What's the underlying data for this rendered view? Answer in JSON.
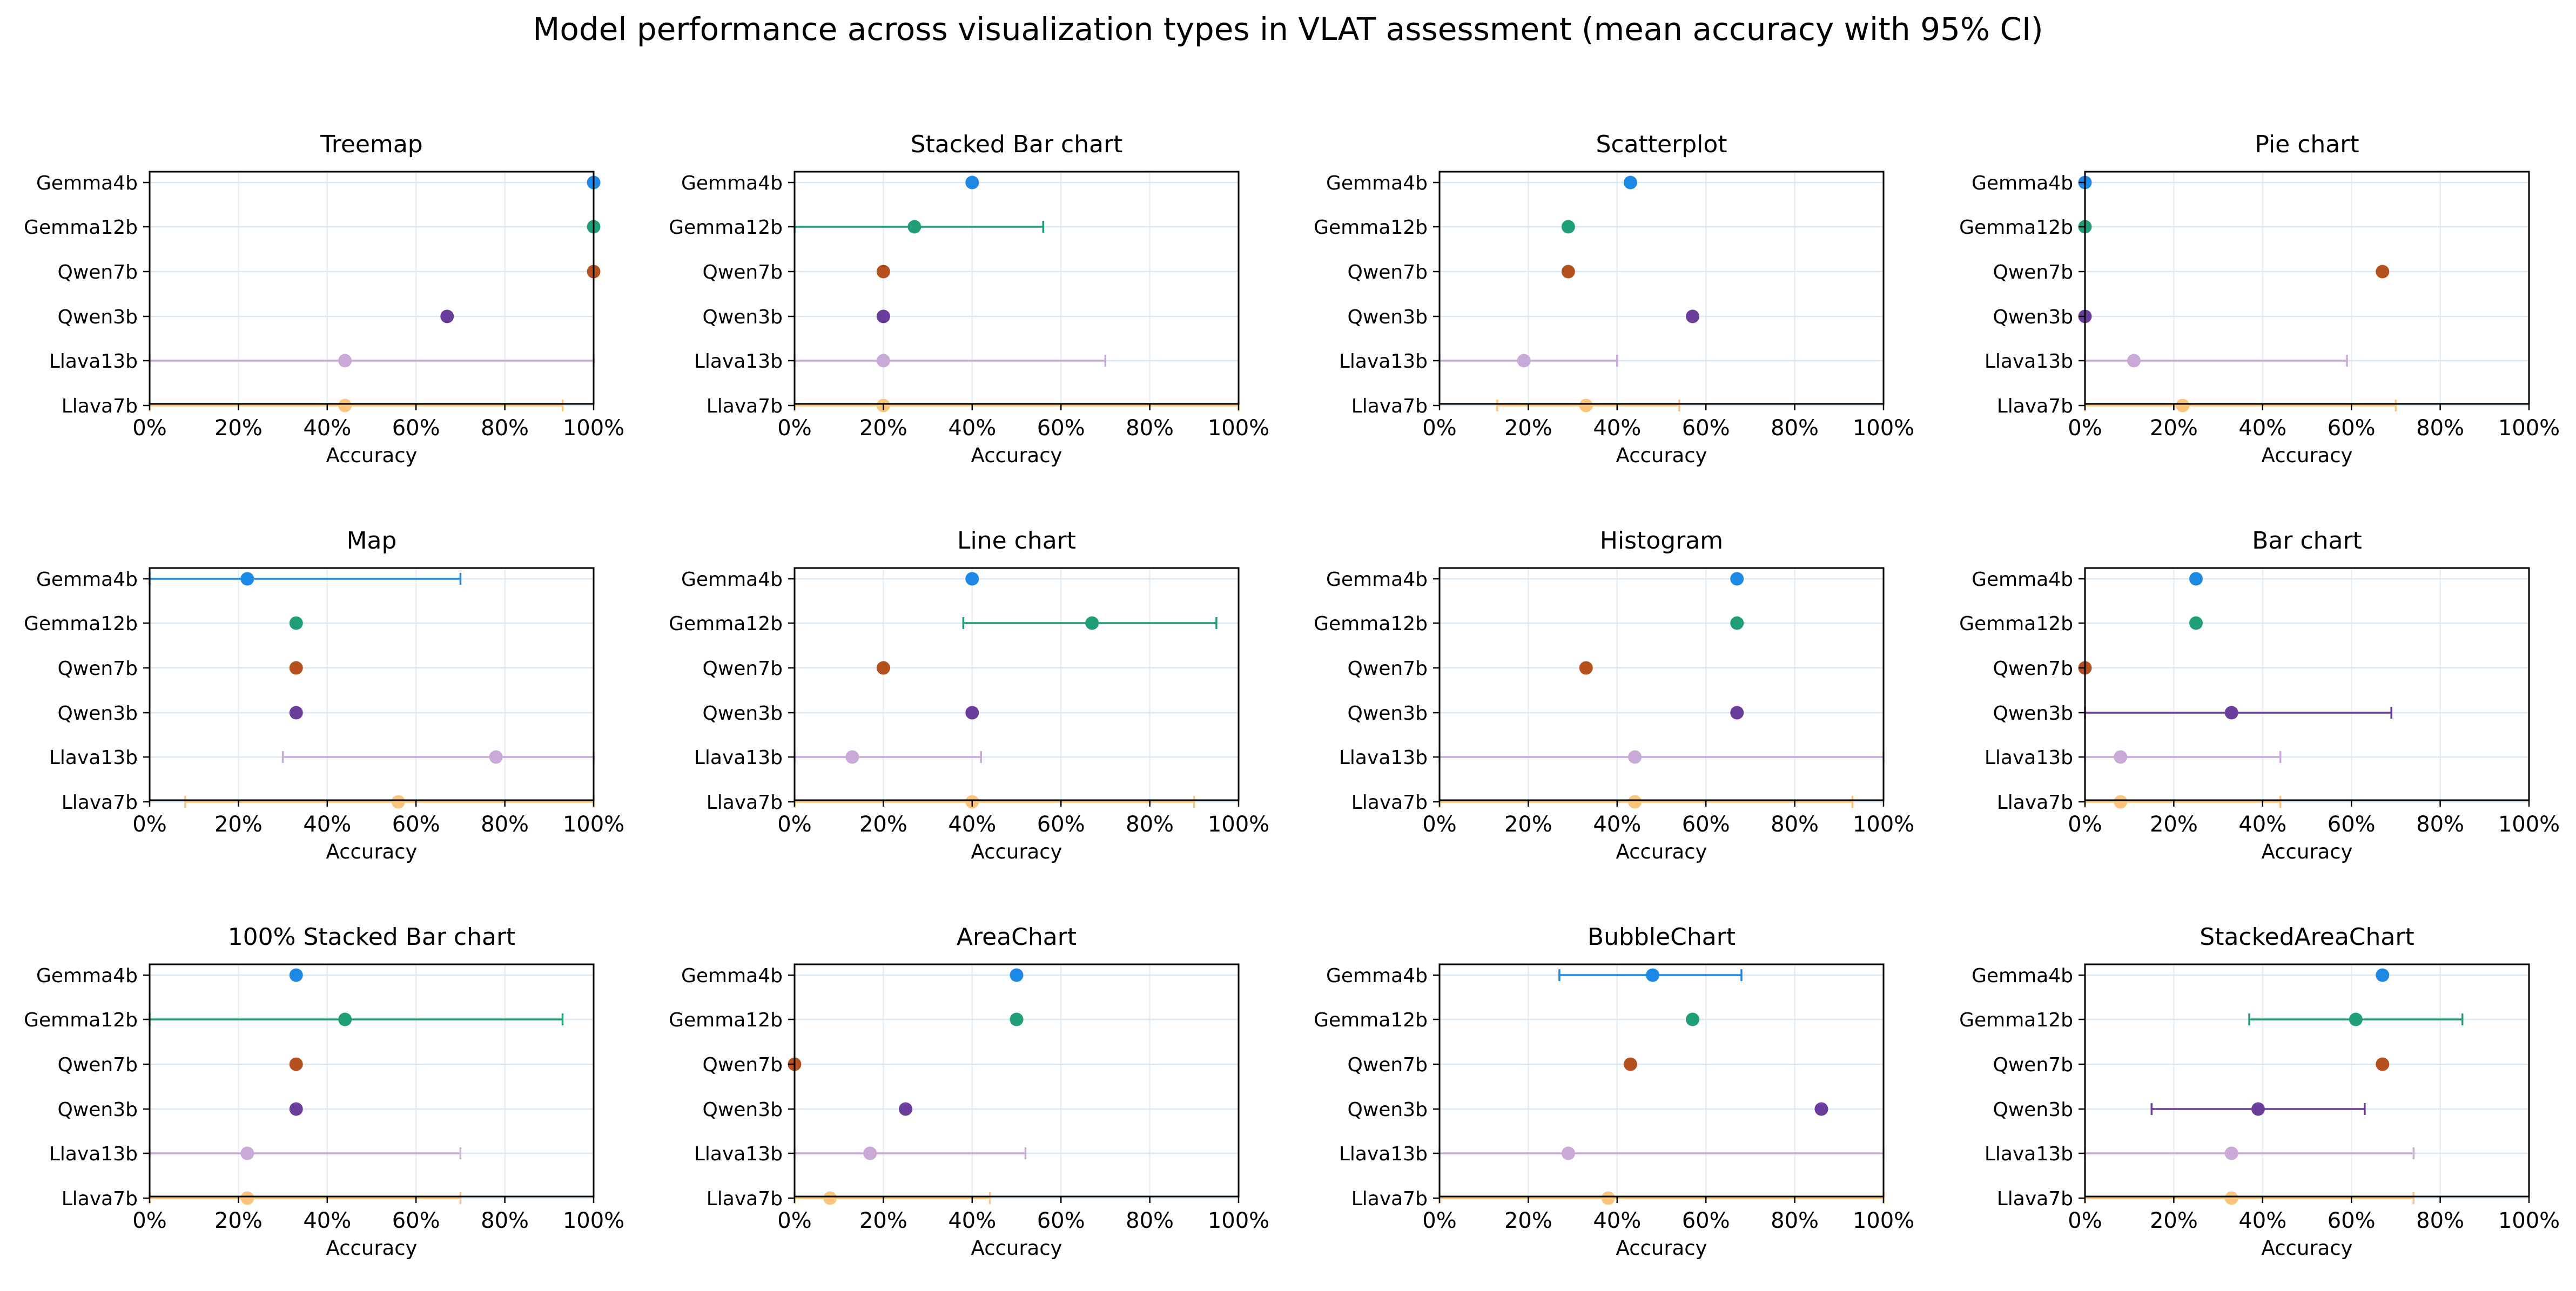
{
  "title": "Model performance across visualization types in VLAT assessment (mean accuracy with 95% CI)",
  "models": [
    "Gemma4b",
    "Gemma12b",
    "Qwen7b",
    "Qwen3b",
    "Llava13b",
    "Llava7b"
  ],
  "colors": {
    "Gemma4b": "#1e88e5",
    "Gemma12b": "#1f9e77",
    "Qwen7b": "#b5501f",
    "Qwen3b": "#6a3d9a",
    "Llava13b": "#c9a9d8",
    "Llava7b": "#fcc57b"
  },
  "chart_data": [
    {
      "type": "scatter",
      "title": "Treemap",
      "xlabel": "Accuracy",
      "xlim": [
        0,
        100
      ],
      "xticks": [
        "0%",
        "20%",
        "40%",
        "60%",
        "80%",
        "100%"
      ],
      "grid": true,
      "series": [
        {
          "name": "Gemma4b",
          "mean": 100,
          "ci": null
        },
        {
          "name": "Gemma12b",
          "mean": 100,
          "ci": null
        },
        {
          "name": "Qwen7b",
          "mean": 100,
          "ci": null
        },
        {
          "name": "Qwen3b",
          "mean": 67,
          "ci": null
        },
        {
          "name": "Llava13b",
          "mean": 44,
          "ci": [
            0,
            100
          ]
        },
        {
          "name": "Llava7b",
          "mean": 44,
          "ci": [
            0,
            93
          ]
        }
      ]
    },
    {
      "type": "scatter",
      "title": "Stacked Bar chart",
      "xlabel": "Accuracy",
      "xlim": [
        0,
        100
      ],
      "xticks": [
        "0%",
        "20%",
        "40%",
        "60%",
        "80%",
        "100%"
      ],
      "grid": true,
      "series": [
        {
          "name": "Gemma4b",
          "mean": 40,
          "ci": null
        },
        {
          "name": "Gemma12b",
          "mean": 27,
          "ci": [
            0,
            56
          ]
        },
        {
          "name": "Qwen7b",
          "mean": 20,
          "ci": null
        },
        {
          "name": "Qwen3b",
          "mean": 20,
          "ci": null
        },
        {
          "name": "Llava13b",
          "mean": 20,
          "ci": [
            0,
            70
          ]
        },
        {
          "name": "Llava7b",
          "mean": 20,
          "ci": [
            0,
            100
          ]
        }
      ]
    },
    {
      "type": "scatter",
      "title": "Scatterplot",
      "xlabel": "Accuracy",
      "xlim": [
        0,
        100
      ],
      "xticks": [
        "0%",
        "20%",
        "40%",
        "60%",
        "80%",
        "100%"
      ],
      "grid": true,
      "series": [
        {
          "name": "Gemma4b",
          "mean": 43,
          "ci": null
        },
        {
          "name": "Gemma12b",
          "mean": 29,
          "ci": null
        },
        {
          "name": "Qwen7b",
          "mean": 29,
          "ci": null
        },
        {
          "name": "Qwen3b",
          "mean": 57,
          "ci": null
        },
        {
          "name": "Llava13b",
          "mean": 19,
          "ci": [
            0,
            40
          ]
        },
        {
          "name": "Llava7b",
          "mean": 33,
          "ci": [
            13,
            54
          ]
        }
      ]
    },
    {
      "type": "scatter",
      "title": "Pie chart",
      "xlabel": "Accuracy",
      "xlim": [
        0,
        100
      ],
      "xticks": [
        "0%",
        "20%",
        "40%",
        "60%",
        "80%",
        "100%"
      ],
      "grid": true,
      "series": [
        {
          "name": "Gemma4b",
          "mean": 0,
          "ci": null
        },
        {
          "name": "Gemma12b",
          "mean": 0,
          "ci": null
        },
        {
          "name": "Qwen7b",
          "mean": 67,
          "ci": null
        },
        {
          "name": "Qwen3b",
          "mean": 0,
          "ci": null
        },
        {
          "name": "Llava13b",
          "mean": 11,
          "ci": [
            0,
            59
          ]
        },
        {
          "name": "Llava7b",
          "mean": 22,
          "ci": [
            0,
            70
          ]
        }
      ]
    },
    {
      "type": "scatter",
      "title": "Map",
      "xlabel": "Accuracy",
      "xlim": [
        0,
        100
      ],
      "xticks": [
        "0%",
        "20%",
        "40%",
        "60%",
        "80%",
        "100%"
      ],
      "grid": true,
      "series": [
        {
          "name": "Gemma4b",
          "mean": 22,
          "ci": [
            0,
            70
          ]
        },
        {
          "name": "Gemma12b",
          "mean": 33,
          "ci": null
        },
        {
          "name": "Qwen7b",
          "mean": 33,
          "ci": null
        },
        {
          "name": "Qwen3b",
          "mean": 33,
          "ci": null
        },
        {
          "name": "Llava13b",
          "mean": 78,
          "ci": [
            30,
            100
          ]
        },
        {
          "name": "Llava7b",
          "mean": 56,
          "ci": [
            8,
            100
          ]
        }
      ]
    },
    {
      "type": "scatter",
      "title": "Line chart",
      "xlabel": "Accuracy",
      "xlim": [
        0,
        100
      ],
      "xticks": [
        "0%",
        "20%",
        "40%",
        "60%",
        "80%",
        "100%"
      ],
      "grid": true,
      "series": [
        {
          "name": "Gemma4b",
          "mean": 40,
          "ci": null
        },
        {
          "name": "Gemma12b",
          "mean": 67,
          "ci": [
            38,
            95
          ]
        },
        {
          "name": "Qwen7b",
          "mean": 20,
          "ci": null
        },
        {
          "name": "Qwen3b",
          "mean": 40,
          "ci": null
        },
        {
          "name": "Llava13b",
          "mean": 13,
          "ci": [
            0,
            42
          ]
        },
        {
          "name": "Llava7b",
          "mean": 40,
          "ci": [
            0,
            90
          ]
        }
      ]
    },
    {
      "type": "scatter",
      "title": "Histogram",
      "xlabel": "Accuracy",
      "xlim": [
        0,
        100
      ],
      "xticks": [
        "0%",
        "20%",
        "40%",
        "60%",
        "80%",
        "100%"
      ],
      "grid": true,
      "series": [
        {
          "name": "Gemma4b",
          "mean": 67,
          "ci": null
        },
        {
          "name": "Gemma12b",
          "mean": 67,
          "ci": null
        },
        {
          "name": "Qwen7b",
          "mean": 33,
          "ci": null
        },
        {
          "name": "Qwen3b",
          "mean": 67,
          "ci": null
        },
        {
          "name": "Llava13b",
          "mean": 44,
          "ci": [
            0,
            100
          ]
        },
        {
          "name": "Llava7b",
          "mean": 44,
          "ci": [
            0,
            93
          ]
        }
      ]
    },
    {
      "type": "scatter",
      "title": "Bar chart",
      "xlabel": "Accuracy",
      "xlim": [
        0,
        100
      ],
      "xticks": [
        "0%",
        "20%",
        "40%",
        "60%",
        "80%",
        "100%"
      ],
      "grid": true,
      "series": [
        {
          "name": "Gemma4b",
          "mean": 25,
          "ci": null
        },
        {
          "name": "Gemma12b",
          "mean": 25,
          "ci": null
        },
        {
          "name": "Qwen7b",
          "mean": 0,
          "ci": null
        },
        {
          "name": "Qwen3b",
          "mean": 33,
          "ci": [
            0,
            69
          ]
        },
        {
          "name": "Llava13b",
          "mean": 8,
          "ci": [
            0,
            44
          ]
        },
        {
          "name": "Llava7b",
          "mean": 8,
          "ci": [
            0,
            44
          ]
        }
      ]
    },
    {
      "type": "scatter",
      "title": "100% Stacked Bar chart",
      "xlabel": "Accuracy",
      "xlim": [
        0,
        100
      ],
      "xticks": [
        "0%",
        "20%",
        "40%",
        "60%",
        "80%",
        "100%"
      ],
      "grid": true,
      "series": [
        {
          "name": "Gemma4b",
          "mean": 33,
          "ci": null
        },
        {
          "name": "Gemma12b",
          "mean": 44,
          "ci": [
            0,
            93
          ]
        },
        {
          "name": "Qwen7b",
          "mean": 33,
          "ci": null
        },
        {
          "name": "Qwen3b",
          "mean": 33,
          "ci": null
        },
        {
          "name": "Llava13b",
          "mean": 22,
          "ci": [
            0,
            70
          ]
        },
        {
          "name": "Llava7b",
          "mean": 22,
          "ci": [
            0,
            70
          ]
        }
      ]
    },
    {
      "type": "scatter",
      "title": "AreaChart",
      "xlabel": "Accuracy",
      "xlim": [
        0,
        100
      ],
      "xticks": [
        "0%",
        "20%",
        "40%",
        "60%",
        "80%",
        "100%"
      ],
      "grid": true,
      "series": [
        {
          "name": "Gemma4b",
          "mean": 50,
          "ci": null
        },
        {
          "name": "Gemma12b",
          "mean": 50,
          "ci": null
        },
        {
          "name": "Qwen7b",
          "mean": 0,
          "ci": null
        },
        {
          "name": "Qwen3b",
          "mean": 25,
          "ci": null
        },
        {
          "name": "Llava13b",
          "mean": 17,
          "ci": [
            0,
            52
          ]
        },
        {
          "name": "Llava7b",
          "mean": 8,
          "ci": [
            0,
            44
          ]
        }
      ]
    },
    {
      "type": "scatter",
      "title": "BubbleChart",
      "xlabel": "Accuracy",
      "xlim": [
        0,
        100
      ],
      "xticks": [
        "0%",
        "20%",
        "40%",
        "60%",
        "80%",
        "100%"
      ],
      "grid": true,
      "series": [
        {
          "name": "Gemma4b",
          "mean": 48,
          "ci": [
            27,
            68
          ]
        },
        {
          "name": "Gemma12b",
          "mean": 57,
          "ci": null
        },
        {
          "name": "Qwen7b",
          "mean": 43,
          "ci": null
        },
        {
          "name": "Qwen3b",
          "mean": 86,
          "ci": null
        },
        {
          "name": "Llava13b",
          "mean": 29,
          "ci": [
            0,
            100
          ]
        },
        {
          "name": "Llava7b",
          "mean": 38,
          "ci": [
            0,
            100
          ]
        }
      ]
    },
    {
      "type": "scatter",
      "title": "StackedAreaChart",
      "xlabel": "Accuracy",
      "xlim": [
        0,
        100
      ],
      "xticks": [
        "0%",
        "20%",
        "40%",
        "60%",
        "80%",
        "100%"
      ],
      "grid": true,
      "series": [
        {
          "name": "Gemma4b",
          "mean": 67,
          "ci": null
        },
        {
          "name": "Gemma12b",
          "mean": 61,
          "ci": [
            37,
            85
          ]
        },
        {
          "name": "Qwen7b",
          "mean": 67,
          "ci": null
        },
        {
          "name": "Qwen3b",
          "mean": 39,
          "ci": [
            15,
            63
          ]
        },
        {
          "name": "Llava13b",
          "mean": 33,
          "ci": [
            0,
            74
          ]
        },
        {
          "name": "Llava7b",
          "mean": 33,
          "ci": [
            0,
            74
          ]
        }
      ]
    }
  ]
}
